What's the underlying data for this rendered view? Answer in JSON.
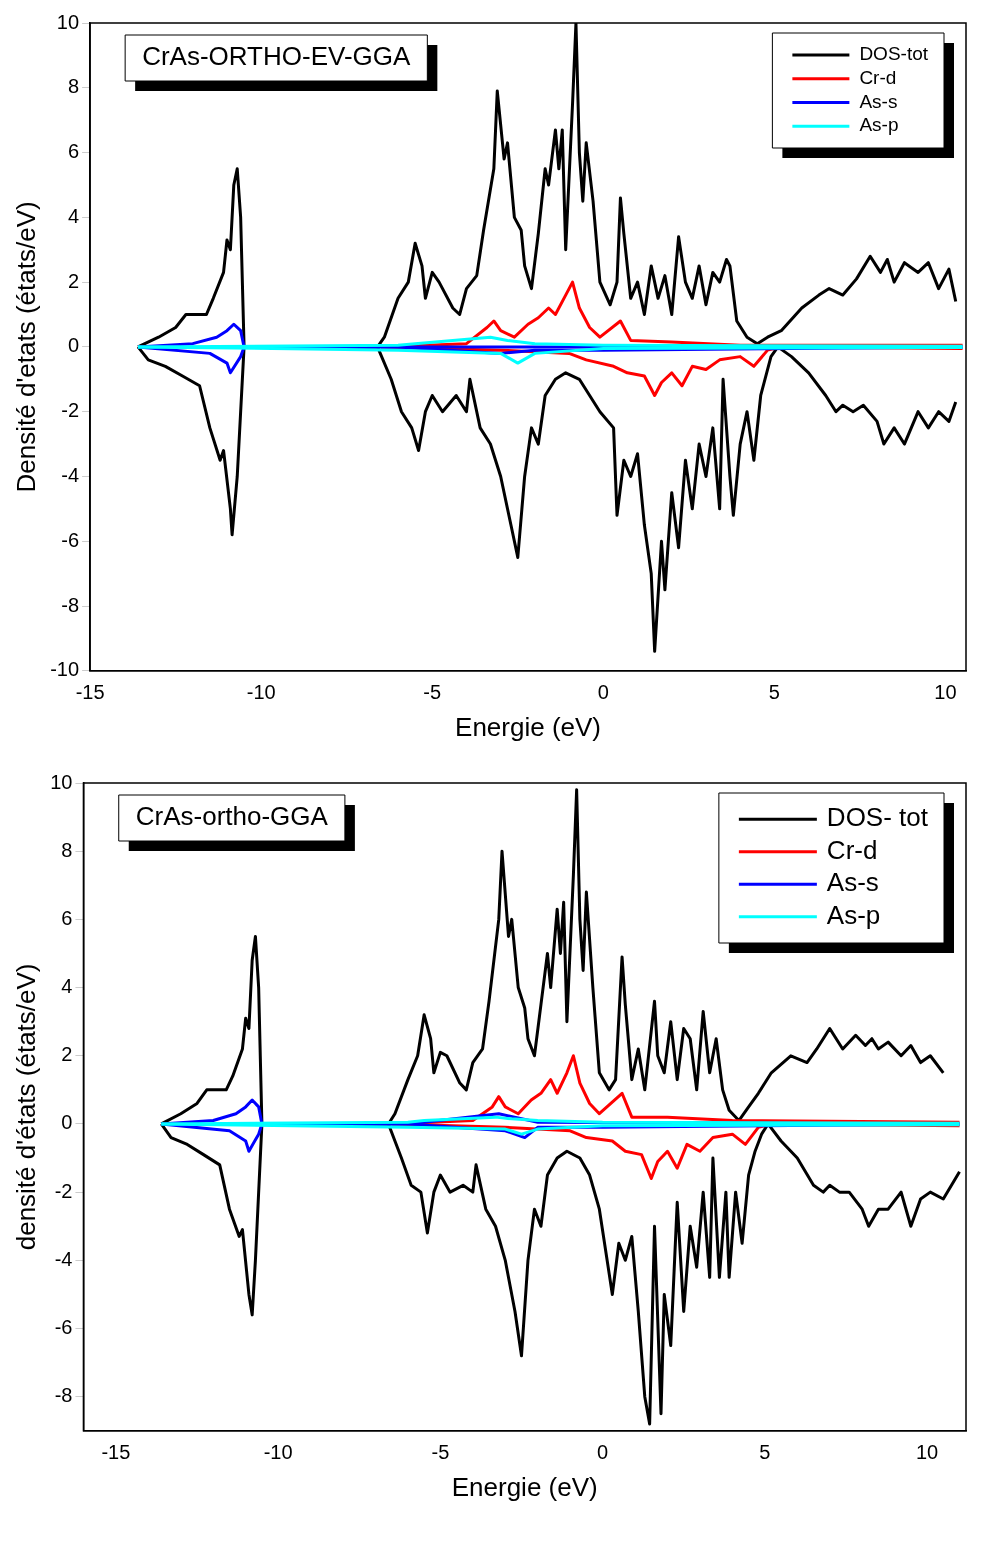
{
  "chart_data": [
    {
      "type": "line",
      "title": "CrAs-ORTHO-EV-GGA",
      "xlabel": "Energie (eV)",
      "ylabel": "Densité d'etats (états/eV)",
      "xlim": [
        -15,
        10.6
      ],
      "xticks": [
        -15,
        -10,
        -5,
        0,
        5,
        10
      ],
      "ylim": [
        -10,
        10
      ],
      "yticks": [
        -10,
        -8,
        -6,
        -4,
        -2,
        0,
        2,
        4,
        6,
        8,
        10
      ],
      "grid": false,
      "legend": "top right",
      "marker": "none",
      "line_style": "solid",
      "series": [
        {
          "name": "DOS-tot",
          "color": "#000000",
          "x": [
            -13.6,
            -13,
            -12.5,
            -12.2,
            -11.6,
            -11.4,
            -11.1,
            -11,
            -10.9,
            -10.8,
            -10.7,
            -10.6,
            -10.5,
            -6.6,
            -6.4,
            -6,
            -5.7,
            -5.5,
            -5.3,
            -5.2,
            -5,
            -4.8,
            -4.4,
            -4.2,
            -4,
            -3.7,
            -3.5,
            -3.2,
            -3.1,
            -2.9,
            -2.8,
            -2.6,
            -2.4,
            -2.3,
            -2.1,
            -1.9,
            -1.7,
            -1.6,
            -1.4,
            -1.3,
            -1.2,
            -1.1,
            -0.9,
            -0.8,
            -0.7,
            -0.6,
            -0.5,
            -0.3,
            -0.1,
            0.2,
            0.4,
            0.5,
            0.6,
            0.8,
            1,
            1.2,
            1.4,
            1.6,
            1.8,
            2,
            2.2,
            2.4,
            2.6,
            2.8,
            3,
            3.2,
            3.4,
            3.6,
            3.7,
            3.9,
            4.2,
            4.5,
            4.8,
            5.2,
            5.8,
            6.3,
            6.6,
            7,
            7.4,
            7.8,
            8.1,
            8.3,
            8.5,
            8.8,
            9.2,
            9.5,
            9.8,
            10.1,
            10.3
          ],
          "values": [
            0,
            0.3,
            0.6,
            1,
            1,
            1.5,
            2.3,
            3.3,
            3,
            5,
            5.5,
            4,
            0,
            0,
            0.3,
            1.5,
            2,
            3.2,
            2.5,
            1.5,
            2.3,
            2,
            1.2,
            1,
            1.8,
            2.2,
            3.6,
            5.5,
            7.9,
            5.8,
            6.3,
            4,
            3.6,
            2.5,
            1.8,
            3.5,
            5.5,
            5,
            6.7,
            5.5,
            6.7,
            3,
            7.5,
            10,
            6,
            4.5,
            6.3,
            4.5,
            2,
            1.3,
            2,
            4.6,
            3.5,
            1.5,
            2,
            1,
            2.5,
            1.5,
            2.2,
            1,
            3.4,
            2,
            1.5,
            2.5,
            1.3,
            2.3,
            2,
            2.7,
            2.5,
            0.8,
            0.3,
            0.1,
            0.3,
            0.5,
            1.2,
            1.6,
            1.8,
            1.6,
            2.1,
            2.8,
            2.3,
            2.7,
            2,
            2.6,
            2.3,
            2.6,
            1.8,
            2.4,
            1.4
          ]
        },
        {
          "color": "#000000",
          "x": [
            -13.6,
            -13.3,
            -12.8,
            -12.3,
            -11.8,
            -11.5,
            -11.2,
            -11.1,
            -10.9,
            -10.85,
            -10.7,
            -10.5,
            -6.6,
            -6.2,
            -5.9,
            -5.6,
            -5.4,
            -5.2,
            -5,
            -4.7,
            -4.3,
            -4,
            -3.9,
            -3.6,
            -3.3,
            -3,
            -2.7,
            -2.5,
            -2.3,
            -2.1,
            -1.9,
            -1.7,
            -1.4,
            -1.1,
            -0.7,
            -0.4,
            -0.1,
            0.3,
            0.4,
            0.6,
            0.8,
            1,
            1.2,
            1.4,
            1.5,
            1.7,
            1.8,
            2,
            2.2,
            2.4,
            2.6,
            2.8,
            3,
            3.2,
            3.4,
            3.5,
            3.7,
            3.8,
            4,
            4.2,
            4.4,
            4.6,
            4.9,
            5.1,
            5.5,
            6,
            6.5,
            6.8,
            7,
            7.3,
            7.6,
            8,
            8.2,
            8.5,
            8.8,
            9.2,
            9.5,
            9.8,
            10.1,
            10.3
          ],
          "values": [
            0,
            -0.4,
            -0.6,
            -0.9,
            -1.2,
            -2.5,
            -3.5,
            -3.2,
            -5,
            -5.8,
            -4,
            0,
            0,
            -1,
            -2,
            -2.5,
            -3.2,
            -2,
            -1.5,
            -2,
            -1.5,
            -2,
            -1,
            -2.5,
            -3,
            -4,
            -5.5,
            -6.5,
            -4,
            -2.5,
            -3,
            -1.5,
            -1,
            -0.8,
            -1,
            -1.5,
            -2,
            -2.5,
            -5.2,
            -3.5,
            -4,
            -3.3,
            -5.5,
            -7,
            -9.4,
            -6,
            -7.5,
            -4.5,
            -6.2,
            -3.5,
            -5,
            -3,
            -4,
            -2.5,
            -5,
            -1,
            -4,
            -5.2,
            -3,
            -2,
            -3.5,
            -1.5,
            -0.3,
            0,
            -0.3,
            -0.8,
            -1.5,
            -2,
            -1.8,
            -2,
            -1.8,
            -2.3,
            -3,
            -2.5,
            -3,
            -2,
            -2.5,
            -2,
            -2.3,
            -1.7
          ]
        },
        {
          "name": "Cr-d",
          "color": "#ff0000",
          "x": [
            -6.5,
            -4,
            -3.4,
            -3.2,
            -3,
            -2.6,
            -2.2,
            -1.9,
            -1.6,
            -1.4,
            -1.1,
            -0.9,
            -0.7,
            -0.4,
            -0.1,
            0.5,
            0.8,
            2,
            4,
            10.5
          ],
          "values": [
            0,
            0.1,
            0.6,
            0.8,
            0.5,
            0.3,
            0.7,
            0.9,
            1.2,
            1,
            1.6,
            2,
            1.2,
            0.6,
            0.3,
            0.8,
            0.2,
            0.15,
            0.05,
            0.05
          ]
        },
        {
          "color": "#ff0000",
          "x": [
            -6.5,
            -3,
            -1,
            -0.5,
            0.3,
            0.7,
            1.2,
            1.5,
            1.7,
            2,
            2.3,
            2.6,
            3,
            3.4,
            4,
            4.4,
            4.8,
            5.2,
            10.5
          ],
          "values": [
            0,
            -0.1,
            -0.2,
            -0.4,
            -0.6,
            -0.8,
            -0.9,
            -1.5,
            -1.1,
            -0.8,
            -1.2,
            -0.6,
            -0.7,
            -0.4,
            -0.3,
            -0.6,
            -0.1,
            0,
            -0.05
          ]
        },
        {
          "name": "As-s",
          "color": "#0000ff",
          "x": [
            -13.6,
            -12,
            -11.3,
            -11,
            -10.8,
            -10.6,
            -10.5,
            -6,
            10.5
          ],
          "values": [
            0,
            0.1,
            0.3,
            0.5,
            0.7,
            0.5,
            0,
            0,
            0
          ]
        },
        {
          "color": "#0000ff",
          "x": [
            -13.6,
            -11.5,
            -11,
            -10.9,
            -10.6,
            -10.5,
            -6,
            -3,
            -2,
            0,
            10.5
          ],
          "values": [
            0,
            -0.2,
            -0.5,
            -0.8,
            -0.3,
            0,
            0,
            -0.2,
            -0.1,
            -0.1,
            0
          ]
        },
        {
          "name": "As-p",
          "color": "#00ffff",
          "x": [
            -13.6,
            -6,
            -5.5,
            -3.3,
            -2.8,
            -2,
            0,
            10.5
          ],
          "values": [
            0,
            0.05,
            0.1,
            0.3,
            0.2,
            0.1,
            0.05,
            0.02
          ]
        },
        {
          "color": "#00ffff",
          "x": [
            -13.6,
            -6,
            -3,
            -2.5,
            -2,
            0,
            10.5
          ],
          "values": [
            0,
            -0.1,
            -0.2,
            -0.5,
            -0.2,
            -0.05,
            -0.02
          ]
        }
      ]
    },
    {
      "type": "line",
      "title": "CrAs-ortho-GGA",
      "xlabel": "Energie (eV)",
      "ylabel": "densité d'états (états/eV)",
      "xlim": [
        -16,
        11.2
      ],
      "xticks": [
        -15,
        -10,
        -5,
        0,
        5,
        10
      ],
      "ylim": [
        -9,
        10
      ],
      "yticks": [
        -8,
        -6,
        -4,
        -2,
        0,
        2,
        4,
        6,
        8,
        10
      ],
      "grid": false,
      "legend": "top right",
      "marker": "none",
      "line_style": "solid",
      "series": [
        {
          "name": "DOS- tot",
          "color": "#000000",
          "x": [
            -13.6,
            -13,
            -12.5,
            -12.2,
            -11.6,
            -11.4,
            -11.1,
            -11,
            -10.9,
            -10.8,
            -10.7,
            -10.6,
            -10.5,
            -6.6,
            -6.4,
            -6,
            -5.7,
            -5.5,
            -5.3,
            -5.2,
            -5,
            -4.8,
            -4.4,
            -4.2,
            -4,
            -3.7,
            -3.5,
            -3.2,
            -3.1,
            -2.9,
            -2.8,
            -2.6,
            -2.4,
            -2.3,
            -2.1,
            -1.9,
            -1.7,
            -1.6,
            -1.4,
            -1.3,
            -1.2,
            -1.1,
            -0.9,
            -0.8,
            -0.7,
            -0.6,
            -0.5,
            -0.3,
            -0.1,
            0.2,
            0.4,
            0.6,
            0.7,
            0.9,
            1.1,
            1.3,
            1.6,
            1.7,
            1.9,
            2.1,
            2.3,
            2.5,
            2.7,
            2.9,
            3.1,
            3.3,
            3.5,
            3.7,
            3.9,
            4.2,
            4.5,
            4.8,
            5.2,
            5.8,
            6.3,
            6.6,
            7,
            7.4,
            7.8,
            8.1,
            8.3,
            8.5,
            8.8,
            9.2,
            9.5,
            9.8,
            10.1,
            10.5
          ],
          "values": [
            0,
            0.3,
            0.6,
            1,
            1,
            1.4,
            2.2,
            3.1,
            2.8,
            4.8,
            5.5,
            4,
            0,
            0,
            0.3,
            1.3,
            2,
            3.2,
            2.5,
            1.5,
            2.1,
            2,
            1.2,
            1,
            1.8,
            2.2,
            3.6,
            6,
            8,
            5.5,
            6,
            4,
            3.4,
            2.5,
            2,
            3.5,
            5,
            4,
            6.3,
            5,
            6.5,
            3,
            7.3,
            9.8,
            6,
            4.5,
            6.8,
            4,
            1.5,
            1,
            1.3,
            4.9,
            3.5,
            1.3,
            2.2,
            1,
            3.6,
            2,
            1.5,
            3,
            1.3,
            2.8,
            2.5,
            1,
            3.3,
            1.5,
            2.5,
            1,
            0.4,
            0.1,
            0.5,
            0.9,
            1.5,
            2,
            1.8,
            2.2,
            2.8,
            2.2,
            2.6,
            2.3,
            2.5,
            2.2,
            2.4,
            2,
            2.3,
            1.8,
            2,
            1.5
          ]
        },
        {
          "color": "#000000",
          "x": [
            -13.6,
            -13.3,
            -12.8,
            -12.3,
            -11.8,
            -11.5,
            -11.2,
            -11.1,
            -10.9,
            -10.8,
            -10.7,
            -10.5,
            -6.6,
            -6.2,
            -5.9,
            -5.6,
            -5.4,
            -5.2,
            -5,
            -4.7,
            -4.3,
            -4,
            -3.9,
            -3.6,
            -3.3,
            -3,
            -2.7,
            -2.5,
            -2.3,
            -2.1,
            -1.9,
            -1.7,
            -1.4,
            -1.1,
            -0.7,
            -0.4,
            -0.1,
            0.3,
            0.5,
            0.7,
            0.9,
            1.1,
            1.3,
            1.45,
            1.6,
            1.8,
            1.9,
            2.1,
            2.3,
            2.5,
            2.7,
            2.9,
            3.1,
            3.3,
            3.4,
            3.6,
            3.8,
            3.9,
            4.1,
            4.3,
            4.5,
            4.7,
            4.9,
            5.1,
            5.5,
            6,
            6.5,
            6.8,
            7,
            7.3,
            7.6,
            8,
            8.2,
            8.5,
            8.8,
            9.2,
            9.5,
            9.8,
            10.1,
            10.5,
            11
          ],
          "values": [
            0,
            -0.4,
            -0.6,
            -0.9,
            -1.2,
            -2.5,
            -3.3,
            -3.1,
            -5,
            -5.6,
            -4,
            0,
            0,
            -1,
            -1.8,
            -2,
            -3.2,
            -2,
            -1.5,
            -2,
            -1.8,
            -2,
            -1.2,
            -2.5,
            -3,
            -4,
            -5.5,
            -6.8,
            -4,
            -2.5,
            -3,
            -1.5,
            -1,
            -0.8,
            -1,
            -1.5,
            -2.5,
            -5,
            -3.5,
            -4,
            -3.3,
            -5.5,
            -8,
            -8.8,
            -3,
            -8.5,
            -5,
            -6.5,
            -2.3,
            -5.5,
            -3,
            -4.2,
            -2,
            -4.5,
            -1,
            -4.5,
            -2,
            -4.5,
            -2,
            -3.5,
            -1.5,
            -0.8,
            -0.3,
            0,
            -0.5,
            -1,
            -1.8,
            -2,
            -1.8,
            -2,
            -2,
            -2.5,
            -3,
            -2.5,
            -2.5,
            -2,
            -3,
            -2.2,
            -2,
            -2.2,
            -1.4
          ]
        },
        {
          "name": "Cr-d",
          "color": "#ff0000",
          "x": [
            -6.5,
            -4,
            -3.4,
            -3.2,
            -3,
            -2.6,
            -2.2,
            -1.9,
            -1.6,
            -1.4,
            -1.1,
            -0.9,
            -0.7,
            -0.4,
            -0.1,
            0.6,
            0.9,
            2,
            4,
            11
          ],
          "values": [
            0,
            0.1,
            0.5,
            0.8,
            0.5,
            0.3,
            0.7,
            0.9,
            1.3,
            0.9,
            1.5,
            2,
            1.2,
            0.6,
            0.3,
            0.9,
            0.2,
            0.2,
            0.1,
            0.05
          ]
        },
        {
          "color": "#ff0000",
          "x": [
            -6.5,
            -3,
            -1,
            -0.5,
            0.3,
            0.7,
            1.2,
            1.5,
            1.7,
            2,
            2.3,
            2.6,
            3,
            3.4,
            4,
            4.4,
            4.8,
            5.2,
            11
          ],
          "values": [
            0,
            -0.1,
            -0.2,
            -0.4,
            -0.5,
            -0.8,
            -0.9,
            -1.6,
            -1.1,
            -0.8,
            -1.3,
            -0.6,
            -0.8,
            -0.4,
            -0.3,
            -0.6,
            -0.1,
            0,
            -0.05
          ]
        },
        {
          "name": "As-s",
          "color": "#0000ff",
          "x": [
            -13.6,
            -12,
            -11.3,
            -11,
            -10.8,
            -10.6,
            -10.5,
            -6,
            -3.2,
            -2,
            11
          ],
          "values": [
            0,
            0.1,
            0.3,
            0.5,
            0.7,
            0.5,
            0,
            0,
            0.3,
            0.05,
            0
          ]
        },
        {
          "color": "#0000ff",
          "x": [
            -13.6,
            -11.5,
            -11,
            -10.9,
            -10.6,
            -10.5,
            -6,
            -3,
            -2.4,
            -2,
            0,
            11
          ],
          "values": [
            0,
            -0.2,
            -0.5,
            -0.8,
            -0.3,
            0,
            0,
            -0.2,
            -0.4,
            -0.1,
            -0.1,
            0
          ]
        },
        {
          "name": "As-p",
          "color": "#00ffff",
          "x": [
            -13.6,
            -6,
            -5.5,
            -3.3,
            -2.8,
            -2,
            0,
            11
          ],
          "values": [
            0,
            0.05,
            0.1,
            0.2,
            0.15,
            0.1,
            0.05,
            0.02
          ]
        },
        {
          "color": "#00ffff",
          "x": [
            -13.6,
            -6,
            -3,
            -2.5,
            -2,
            0,
            11
          ],
          "values": [
            0,
            -0.1,
            -0.15,
            -0.3,
            -0.15,
            -0.05,
            -0.02
          ]
        }
      ]
    }
  ]
}
